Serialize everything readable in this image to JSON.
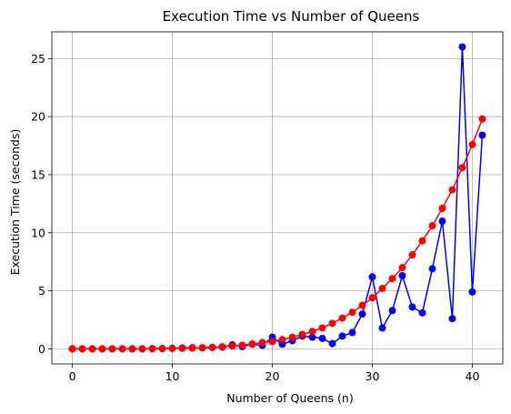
{
  "chart_data": {
    "type": "line",
    "title": "Execution Time vs Number of Queens",
    "xlabel": "Number of Queens (n)",
    "ylabel": "Execution Time (seconds)",
    "xlim": [
      -2.05,
      43.05
    ],
    "ylim": [
      -1.3,
      27.3
    ],
    "xticks": [
      0,
      10,
      20,
      30,
      40
    ],
    "yticks": [
      0,
      5,
      10,
      15,
      20,
      25
    ],
    "grid": true,
    "x": [
      0,
      1,
      2,
      3,
      4,
      5,
      6,
      7,
      8,
      9,
      10,
      11,
      12,
      13,
      14,
      15,
      16,
      17,
      18,
      19,
      20,
      21,
      22,
      23,
      24,
      25,
      26,
      27,
      28,
      29,
      30,
      31,
      32,
      33,
      34,
      35,
      36,
      37,
      38,
      39,
      40,
      41
    ],
    "series": [
      {
        "color": "#0000ff",
        "marker": "o",
        "values": [
          0,
          0,
          0,
          0,
          0,
          0,
          0,
          0,
          0.02,
          0.03,
          0.05,
          0.08,
          0.1,
          0.08,
          0.12,
          0.15,
          0.35,
          0.2,
          0.4,
          0.3,
          1.0,
          0.4,
          0.7,
          1.1,
          1.0,
          0.9,
          0.45,
          1.1,
          1.4,
          3.0,
          6.2,
          1.8,
          3.3,
          6.3,
          3.6,
          3.1,
          6.9,
          11.0,
          2.6,
          26.0,
          4.9,
          18.4
        ]
      },
      {
        "color": "#ff0000",
        "marker": "o",
        "values": [
          0,
          0,
          0,
          0,
          0,
          0,
          0,
          0,
          0.01,
          0.02,
          0.03,
          0.05,
          0.07,
          0.1,
          0.13,
          0.18,
          0.24,
          0.32,
          0.42,
          0.55,
          0.62,
          0.8,
          1.0,
          1.25,
          1.5,
          1.8,
          2.2,
          2.65,
          3.15,
          3.75,
          4.4,
          5.2,
          6.05,
          7.0,
          8.1,
          9.3,
          10.6,
          12.1,
          13.7,
          15.6,
          17.6,
          19.8
        ]
      }
    ]
  }
}
